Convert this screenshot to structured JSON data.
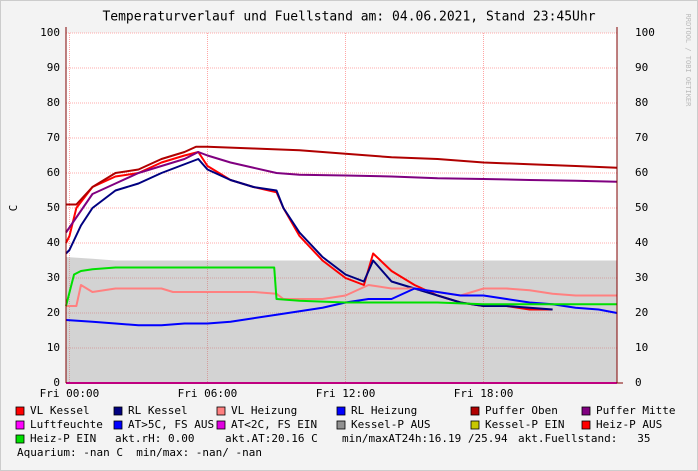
{
  "chart_data": {
    "type": "line",
    "title": "Temperaturverlauf und Fuellstand am: 04.06.2021, Stand 23:45Uhr",
    "y_label": "C",
    "watermark": "RRDTOOL / TOBI OETIKER",
    "xlim": [
      -0.15,
      23.8
    ],
    "xticks": [
      {
        "value": 0,
        "label": "Fri 00:00"
      },
      {
        "value": 6,
        "label": "Fri 06:00"
      },
      {
        "value": 12,
        "label": "Fri 12:00"
      },
      {
        "value": 18,
        "label": "Fri 18:00"
      }
    ],
    "ylim": [
      0,
      100
    ],
    "yticks": [
      0,
      10,
      20,
      30,
      40,
      50,
      60,
      70,
      80,
      90,
      100
    ],
    "right_axis": true,
    "grid": true,
    "series": [
      {
        "name": "VL Kessel",
        "color": "#ff0000",
        "x": [
          -0.15,
          0,
          0.3,
          1,
          2,
          3,
          4,
          5,
          5.6,
          6,
          7,
          8,
          9,
          9.3,
          10,
          11,
          12,
          12.8,
          13.2,
          14,
          15,
          16,
          17,
          18,
          19,
          20,
          21
        ],
        "values": [
          40,
          42,
          50,
          56,
          59,
          60,
          63,
          65,
          66,
          62,
          58,
          56,
          54.5,
          50,
          42,
          35,
          30,
          28,
          37,
          32,
          28,
          25,
          23,
          22,
          22,
          21,
          21
        ]
      },
      {
        "name": "RL Kessel",
        "color": "#000080",
        "x": [
          -0.15,
          0,
          0.5,
          1,
          2,
          3,
          4,
          5,
          5.6,
          6,
          7,
          8,
          9,
          9.3,
          10,
          11,
          12,
          12.8,
          13.2,
          14,
          15,
          16,
          17,
          18,
          19,
          20,
          21
        ],
        "values": [
          37,
          38,
          45,
          50,
          55,
          57,
          60,
          62.5,
          64,
          61,
          58,
          56,
          55,
          50,
          43,
          36,
          31,
          29,
          35,
          29,
          27,
          25,
          23,
          22,
          22,
          21.5,
          21
        ]
      },
      {
        "name": "VL Heizung",
        "color": "#ff8080",
        "x": [
          -0.15,
          0.3,
          0.5,
          1,
          2,
          3,
          4,
          4.5,
          5,
          6,
          7,
          8,
          9,
          9.3,
          10,
          11,
          12,
          13,
          14,
          15,
          16,
          17,
          18,
          19,
          20,
          21,
          22,
          23,
          23.8
        ],
        "values": [
          22,
          22,
          28,
          26,
          27,
          27,
          27,
          26,
          26,
          26,
          26,
          26,
          25.5,
          24,
          24,
          24,
          25,
          28,
          27,
          27,
          26,
          25,
          27,
          27,
          26.5,
          25.5,
          25,
          25,
          25
        ]
      },
      {
        "name": "RL Heizung",
        "color": "#0000ff",
        "x": [
          -0.15,
          1,
          2,
          3,
          4,
          5,
          6,
          7,
          8,
          9,
          10,
          11,
          12,
          13,
          14,
          15,
          16,
          17,
          18,
          19,
          20,
          21,
          22,
          23,
          23.8
        ],
        "values": [
          18,
          17.5,
          17,
          16.5,
          16.5,
          17,
          17,
          17.5,
          18.5,
          19.5,
          20.5,
          21.5,
          23,
          24,
          24,
          27,
          26,
          25,
          25,
          24,
          23,
          22.5,
          21.5,
          21,
          20
        ]
      },
      {
        "name": "Puffer Oben",
        "color": "#b00000",
        "x": [
          -0.15,
          0.3,
          1,
          2,
          3,
          4,
          5,
          5.5,
          6,
          8,
          10,
          12,
          14,
          16,
          18,
          20,
          22,
          23.8
        ],
        "values": [
          51,
          51,
          56,
          60,
          61,
          64,
          66,
          67.5,
          67.5,
          67,
          66.5,
          65.5,
          64.5,
          64,
          63,
          62.5,
          62,
          61.5
        ]
      },
      {
        "name": "Puffer Mitte",
        "color": "#800080",
        "x": [
          -0.15,
          1,
          2,
          3,
          4,
          5,
          5.6,
          6,
          7,
          8,
          9,
          10,
          12,
          14,
          16,
          18,
          20,
          22,
          23.8
        ],
        "values": [
          43,
          54,
          57,
          60,
          62,
          64,
          66,
          65,
          63,
          61.5,
          60,
          59.5,
          59.3,
          59,
          58.5,
          58.3,
          58,
          57.8,
          57.5
        ]
      },
      {
        "name": "Luftfeuchte",
        "color": "#ff00ff",
        "x": [
          -0.15,
          23.8
        ],
        "values": [
          0,
          0
        ]
      },
      {
        "name": "AT>5C, FS AUS",
        "color": "#0000ff",
        "x": [],
        "values": []
      },
      {
        "name": "AT<2C, FS EIN",
        "color": "#e000e0",
        "x": [],
        "values": []
      },
      {
        "name": "Kessel-P AUS",
        "color": "#909090",
        "style": "area",
        "x": [
          -0.15,
          1,
          2,
          4,
          6,
          8,
          10,
          12,
          14,
          16,
          18,
          20,
          22,
          23.8
        ],
        "values": [
          36,
          35.5,
          35,
          35,
          35,
          35,
          35,
          35,
          35,
          35,
          35,
          35,
          35,
          35
        ]
      },
      {
        "name": "Kessel-P EIN",
        "color": "#c8c800",
        "x": [],
        "values": []
      },
      {
        "name": "Heiz-P AUS",
        "color": "#ff0000",
        "x": [],
        "values": []
      },
      {
        "name": "Heiz-P EIN",
        "color": "#00e000",
        "x": [
          -0.15,
          0.2,
          0.5,
          1,
          2,
          4,
          5,
          6,
          8,
          8.9,
          9,
          10,
          12,
          14,
          16,
          18,
          20,
          22,
          23.8
        ],
        "values": [
          22,
          31,
          32,
          32.5,
          33,
          33,
          33,
          33,
          33,
          33,
          24,
          23.5,
          23,
          23,
          23,
          22.5,
          22.5,
          22.5,
          22.5
        ]
      }
    ],
    "info": [
      "akt.rH: 0.00",
      "akt.AT:20.16 C",
      "min/maxAT24h:16.19 /25.94",
      "akt.Fuellstand:   35",
      "Aquarium: -nan C  min/max: -nan/ -nan"
    ]
  }
}
